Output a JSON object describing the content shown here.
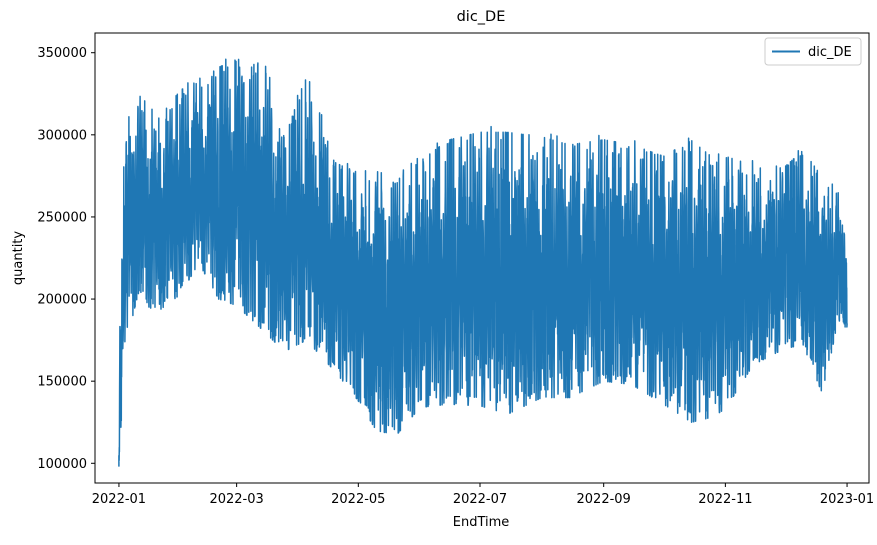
{
  "chart_data": {
    "type": "line",
    "title": "dic_DE",
    "xlabel": "EndTime",
    "ylabel": "quantity",
    "x_range": [
      "2021-12-20",
      "2023-01-12"
    ],
    "ylim": [
      88000,
      362000
    ],
    "x_ticks": [
      "2022-01",
      "2022-03",
      "2022-05",
      "2022-07",
      "2022-09",
      "2022-11",
      "2023-01"
    ],
    "y_ticks": [
      100000,
      150000,
      200000,
      250000,
      300000,
      350000
    ],
    "y_tick_labels": [
      "100000",
      "150000",
      "200000",
      "250000",
      "300000",
      "350000"
    ],
    "grid": false,
    "legend": {
      "placement": "top-right",
      "entries": [
        "dic_DE"
      ]
    },
    "series": [
      {
        "name": "dic_DE",
        "color": "#1f77b4",
        "frequency": "hourly",
        "x_start": "2022-01-01",
        "x_end": "2022-12-31",
        "envelope": [
          {
            "x": "2022-01-01",
            "low": 98000,
            "high": 192000
          },
          {
            "x": "2022-01-04",
            "low": 170000,
            "high": 305000
          },
          {
            "x": "2022-01-10",
            "low": 200000,
            "high": 331000
          },
          {
            "x": "2022-01-20",
            "low": 192000,
            "high": 311000
          },
          {
            "x": "2022-02-01",
            "low": 203000,
            "high": 330000
          },
          {
            "x": "2022-02-10",
            "low": 222000,
            "high": 334000
          },
          {
            "x": "2022-02-20",
            "low": 200000,
            "high": 344000
          },
          {
            "x": "2022-03-01",
            "low": 196000,
            "high": 349000
          },
          {
            "x": "2022-03-15",
            "low": 180000,
            "high": 349000
          },
          {
            "x": "2022-03-25",
            "low": 168000,
            "high": 300000
          },
          {
            "x": "2022-04-05",
            "low": 175000,
            "high": 340000
          },
          {
            "x": "2022-04-20",
            "low": 155000,
            "high": 285000
          },
          {
            "x": "2022-05-01",
            "low": 138000,
            "high": 280000
          },
          {
            "x": "2022-05-10",
            "low": 120000,
            "high": 285000
          },
          {
            "x": "2022-05-20",
            "low": 117000,
            "high": 275000
          },
          {
            "x": "2022-06-01",
            "low": 134000,
            "high": 287000
          },
          {
            "x": "2022-06-15",
            "low": 136000,
            "high": 300000
          },
          {
            "x": "2022-07-01",
            "low": 135000,
            "high": 305000
          },
          {
            "x": "2022-07-15",
            "low": 130000,
            "high": 305000
          },
          {
            "x": "2022-08-01",
            "low": 140000,
            "high": 302000
          },
          {
            "x": "2022-08-15",
            "low": 140000,
            "high": 297000
          },
          {
            "x": "2022-09-01",
            "low": 150000,
            "high": 300000
          },
          {
            "x": "2022-09-15",
            "low": 148000,
            "high": 297000
          },
          {
            "x": "2022-10-01",
            "low": 136000,
            "high": 290000
          },
          {
            "x": "2022-10-15",
            "low": 125000,
            "high": 300000
          },
          {
            "x": "2022-10-25",
            "low": 128000,
            "high": 290000
          },
          {
            "x": "2022-11-01",
            "low": 133000,
            "high": 290000
          },
          {
            "x": "2022-11-15",
            "low": 160000,
            "high": 284000
          },
          {
            "x": "2022-12-01",
            "low": 170000,
            "high": 283000
          },
          {
            "x": "2022-12-10",
            "low": 172000,
            "high": 293000
          },
          {
            "x": "2022-12-20",
            "low": 141000,
            "high": 276000
          },
          {
            "x": "2022-12-27",
            "low": 185000,
            "high": 270000
          },
          {
            "x": "2022-12-31",
            "low": 183000,
            "high": 240000
          }
        ]
      }
    ]
  }
}
